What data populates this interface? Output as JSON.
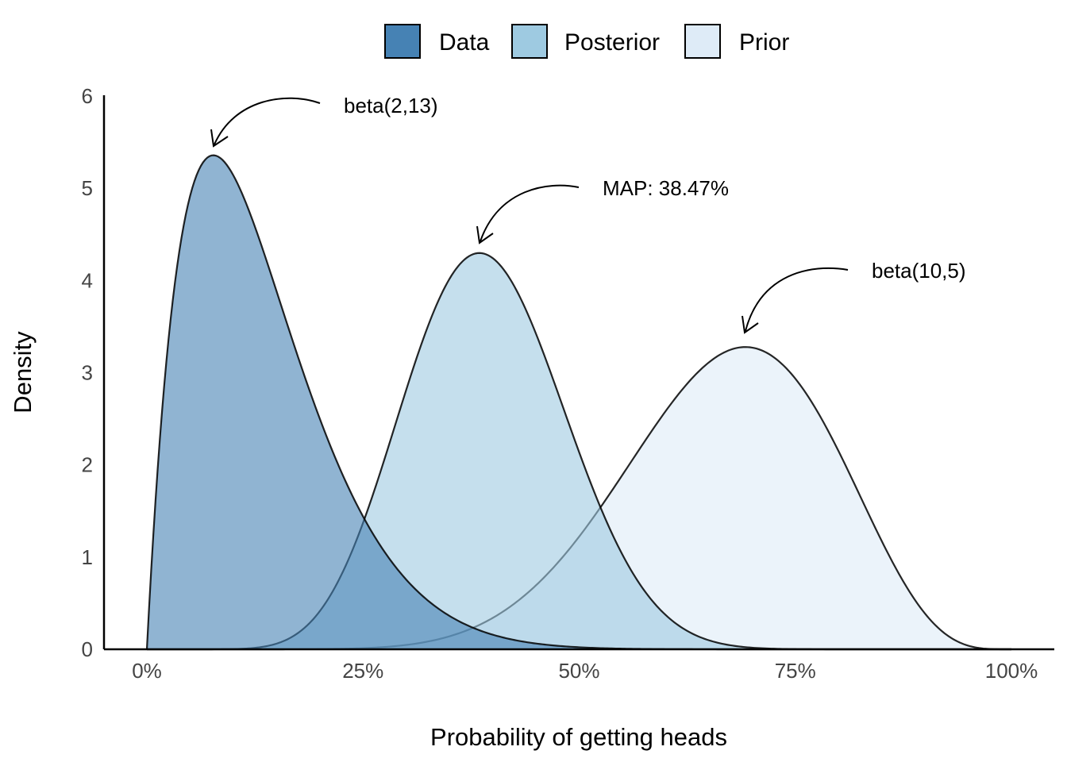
{
  "chart_data": {
    "type": "area",
    "title": "",
    "xlabel": "Probability of getting heads",
    "ylabel": "Density",
    "xlim": [
      0,
      1
    ],
    "ylim": [
      0,
      6
    ],
    "x_ticks": [
      0,
      0.25,
      0.5,
      0.75,
      1
    ],
    "x_tick_labels": [
      "0%",
      "25%",
      "50%",
      "75%",
      "100%"
    ],
    "y_ticks": [
      0,
      1,
      2,
      3,
      4,
      5,
      6
    ],
    "y_tick_labels": [
      "0",
      "1",
      "2",
      "3",
      "4",
      "5",
      "6"
    ],
    "grid": false,
    "legend_position": "top",
    "legend": [
      {
        "name": "Data",
        "color": "#4682b4"
      },
      {
        "name": "Posterior",
        "color": "#9ecae1"
      },
      {
        "name": "Prior",
        "color": "#deebf7"
      }
    ],
    "series": [
      {
        "name": "Data",
        "distribution": "beta",
        "alpha": 2,
        "beta": 13,
        "fill": "#4682b4",
        "fill_opacity": 0.6
      },
      {
        "name": "Posterior",
        "distribution": "beta",
        "alpha": 11,
        "beta": 17,
        "fill": "#9ecae1",
        "fill_opacity": 0.6
      },
      {
        "name": "Prior",
        "distribution": "beta",
        "alpha": 10,
        "beta": 5,
        "fill": "#deebf7",
        "fill_opacity": 0.6
      }
    ],
    "annotations": [
      {
        "text": "beta(2,13)",
        "target_series": "Data"
      },
      {
        "text": "MAP: 38.47%",
        "target_series": "Posterior"
      },
      {
        "text": "beta(10,5)",
        "target_series": "Prior"
      }
    ]
  }
}
